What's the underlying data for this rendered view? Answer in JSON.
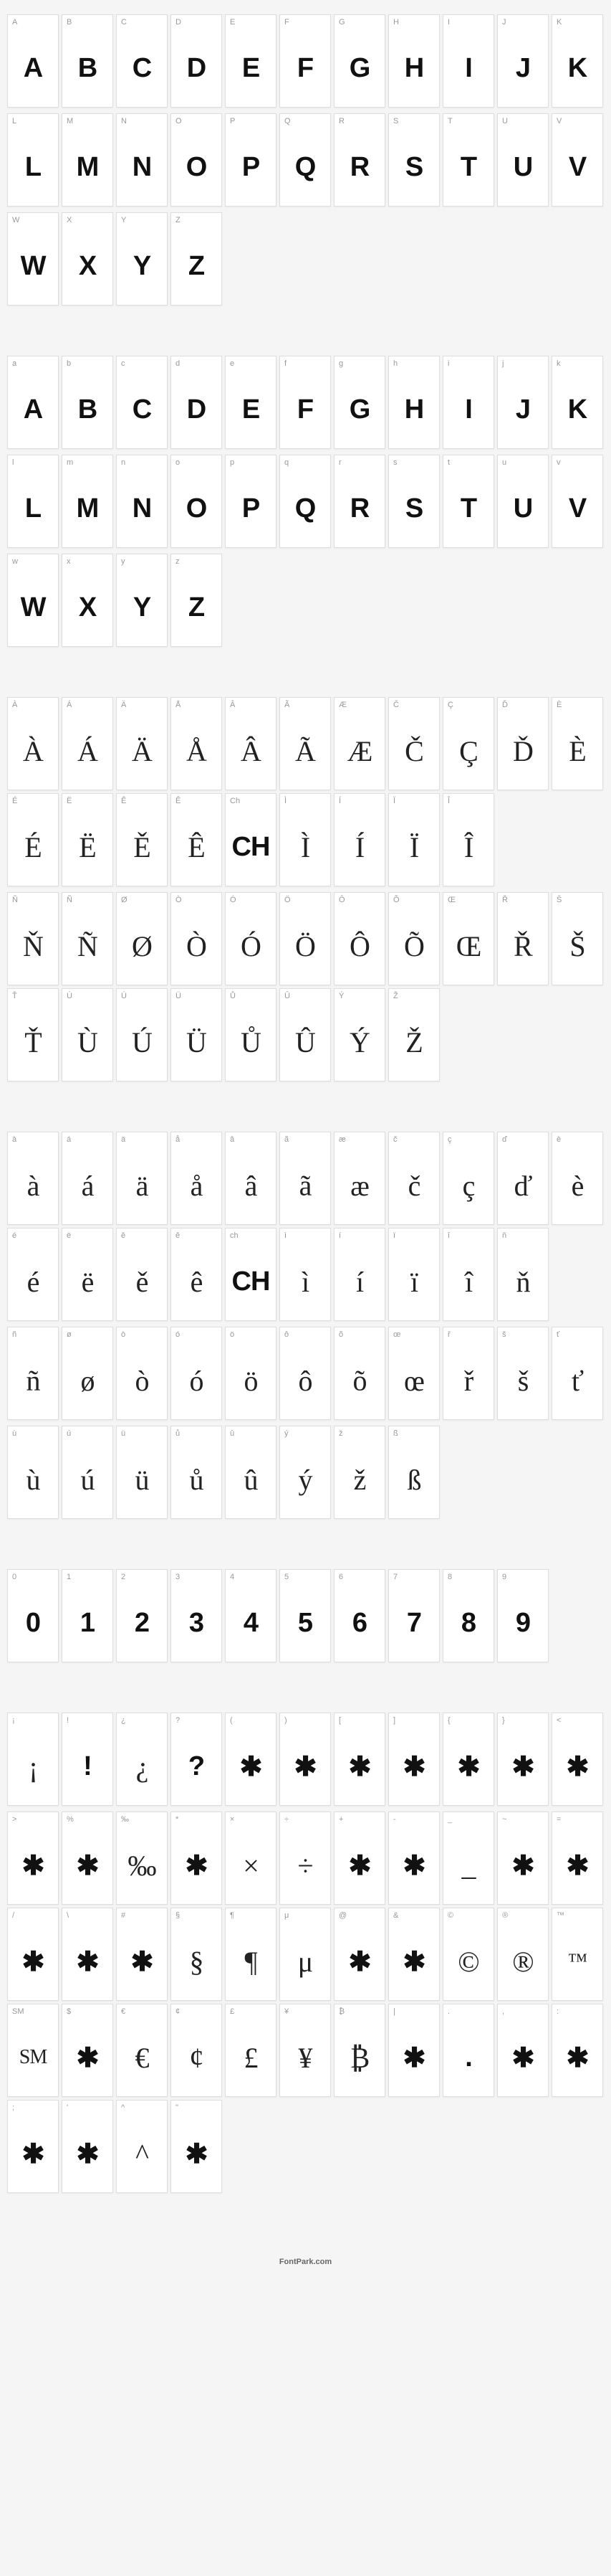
{
  "footer": "FontPark.com",
  "sections": [
    {
      "id": "uppercase",
      "glyph_style": "bold",
      "cells_per_row": 11,
      "cells": [
        {
          "label": "A",
          "glyph": "A"
        },
        {
          "label": "B",
          "glyph": "B"
        },
        {
          "label": "C",
          "glyph": "C"
        },
        {
          "label": "D",
          "glyph": "D"
        },
        {
          "label": "E",
          "glyph": "E"
        },
        {
          "label": "F",
          "glyph": "F"
        },
        {
          "label": "G",
          "glyph": "G"
        },
        {
          "label": "H",
          "glyph": "H"
        },
        {
          "label": "I",
          "glyph": "I"
        },
        {
          "label": "J",
          "glyph": "J"
        },
        {
          "label": "K",
          "glyph": "K"
        },
        {
          "label": "L",
          "glyph": "L"
        },
        {
          "label": "M",
          "glyph": "M"
        },
        {
          "label": "N",
          "glyph": "N"
        },
        {
          "label": "O",
          "glyph": "O"
        },
        {
          "label": "P",
          "glyph": "P"
        },
        {
          "label": "Q",
          "glyph": "Q"
        },
        {
          "label": "R",
          "glyph": "R"
        },
        {
          "label": "S",
          "glyph": "S"
        },
        {
          "label": "T",
          "glyph": "T"
        },
        {
          "label": "U",
          "glyph": "U"
        },
        {
          "label": "V",
          "glyph": "V"
        },
        {
          "label": "W",
          "glyph": "W"
        },
        {
          "label": "X",
          "glyph": "X"
        },
        {
          "label": "Y",
          "glyph": "Y"
        },
        {
          "label": "Z",
          "glyph": "Z"
        }
      ]
    },
    {
      "id": "lowercase",
      "glyph_style": "bold",
      "cells_per_row": 11,
      "cells": [
        {
          "label": "a",
          "glyph": "A"
        },
        {
          "label": "b",
          "glyph": "B"
        },
        {
          "label": "c",
          "glyph": "C"
        },
        {
          "label": "d",
          "glyph": "D"
        },
        {
          "label": "e",
          "glyph": "E"
        },
        {
          "label": "f",
          "glyph": "F"
        },
        {
          "label": "g",
          "glyph": "G"
        },
        {
          "label": "h",
          "glyph": "H"
        },
        {
          "label": "i",
          "glyph": "I"
        },
        {
          "label": "j",
          "glyph": "J"
        },
        {
          "label": "k",
          "glyph": "K"
        },
        {
          "label": "l",
          "glyph": "L"
        },
        {
          "label": "m",
          "glyph": "M"
        },
        {
          "label": "n",
          "glyph": "N"
        },
        {
          "label": "o",
          "glyph": "O"
        },
        {
          "label": "p",
          "glyph": "P"
        },
        {
          "label": "q",
          "glyph": "Q"
        },
        {
          "label": "r",
          "glyph": "R"
        },
        {
          "label": "s",
          "glyph": "S"
        },
        {
          "label": "t",
          "glyph": "T"
        },
        {
          "label": "u",
          "glyph": "U"
        },
        {
          "label": "v",
          "glyph": "V"
        },
        {
          "label": "w",
          "glyph": "W"
        },
        {
          "label": "x",
          "glyph": "X"
        },
        {
          "label": "y",
          "glyph": "Y"
        },
        {
          "label": "z",
          "glyph": "Z"
        }
      ]
    },
    {
      "id": "accented-upper",
      "glyph_style": "serif",
      "cells_per_row": 11,
      "cells": [
        {
          "label": "À",
          "glyph": "À"
        },
        {
          "label": "Á",
          "glyph": "Á"
        },
        {
          "label": "Ä",
          "glyph": "Ä"
        },
        {
          "label": "Å",
          "glyph": "Å"
        },
        {
          "label": "Â",
          "glyph": "Â"
        },
        {
          "label": "Ã",
          "glyph": "Ã"
        },
        {
          "label": "Æ",
          "glyph": "Æ"
        },
        {
          "label": "Č",
          "glyph": "Č"
        },
        {
          "label": "Ç",
          "glyph": "Ç"
        },
        {
          "label": "",
          "glyph": "",
          "empty": true
        },
        {
          "label": "",
          "glyph": "",
          "empty": true
        },
        {
          "label": "Ď",
          "glyph": "Ď"
        },
        {
          "label": "È",
          "glyph": "È"
        },
        {
          "label": "É",
          "glyph": "É"
        },
        {
          "label": "Ë",
          "glyph": "Ë"
        },
        {
          "label": "Ě",
          "glyph": "Ě"
        },
        {
          "label": "Ê",
          "glyph": "Ê"
        },
        {
          "label": "Ch",
          "glyph": "CH",
          "bold": true
        },
        {
          "label": "Ì",
          "glyph": "Ì"
        },
        {
          "label": "Í",
          "glyph": "Í"
        },
        {
          "label": "Ï",
          "glyph": "Ï"
        },
        {
          "label": "Î",
          "glyph": "Î"
        },
        {
          "label": "Ň",
          "glyph": "Ň"
        },
        {
          "label": "Ñ",
          "glyph": "Ñ"
        },
        {
          "label": "Ø",
          "glyph": "Ø"
        },
        {
          "label": "Ò",
          "glyph": "Ò"
        },
        {
          "label": "Ó",
          "glyph": "Ó"
        },
        {
          "label": "Ö",
          "glyph": "Ö"
        },
        {
          "label": "Ô",
          "glyph": "Ô"
        },
        {
          "label": "Õ",
          "glyph": "Õ"
        },
        {
          "label": "Œ",
          "glyph": "Œ"
        },
        {
          "label": "",
          "glyph": "",
          "empty": true
        },
        {
          "label": "",
          "glyph": "",
          "empty": true
        },
        {
          "label": "Ř",
          "glyph": "Ř"
        },
        {
          "label": "Š",
          "glyph": "Š"
        },
        {
          "label": "Ť",
          "glyph": "Ť"
        },
        {
          "label": "Ù",
          "glyph": "Ù"
        },
        {
          "label": "Ú",
          "glyph": "Ú"
        },
        {
          "label": "Ü",
          "glyph": "Ü"
        },
        {
          "label": "Ů",
          "glyph": "Ů"
        },
        {
          "label": "Û",
          "glyph": "Û"
        },
        {
          "label": "Ý",
          "glyph": "Ý"
        },
        {
          "label": "Ž",
          "glyph": "Ž"
        }
      ]
    },
    {
      "id": "accented-lower",
      "glyph_style": "serif",
      "cells_per_row": 11,
      "cells": [
        {
          "label": "à",
          "glyph": "à"
        },
        {
          "label": "á",
          "glyph": "á"
        },
        {
          "label": "ä",
          "glyph": "ä"
        },
        {
          "label": "å",
          "glyph": "å"
        },
        {
          "label": "â",
          "glyph": "â"
        },
        {
          "label": "ã",
          "glyph": "ã"
        },
        {
          "label": "æ",
          "glyph": "æ"
        },
        {
          "label": "č",
          "glyph": "č"
        },
        {
          "label": "ç",
          "glyph": "ç"
        },
        {
          "label": "ď",
          "glyph": "ď"
        },
        {
          "label": "",
          "glyph": "",
          "empty": true
        },
        {
          "label": "è",
          "glyph": "è"
        },
        {
          "label": "é",
          "glyph": "é"
        },
        {
          "label": "ë",
          "glyph": "ë"
        },
        {
          "label": "ě",
          "glyph": "ě"
        },
        {
          "label": "ê",
          "glyph": "ê"
        },
        {
          "label": "ch",
          "glyph": "CH",
          "bold": true
        },
        {
          "label": "ì",
          "glyph": "ì"
        },
        {
          "label": "í",
          "glyph": "í"
        },
        {
          "label": "ï",
          "glyph": "ï"
        },
        {
          "label": "î",
          "glyph": "î"
        },
        {
          "label": "ň",
          "glyph": "ň"
        },
        {
          "label": "ñ",
          "glyph": "ñ"
        },
        {
          "label": "ø",
          "glyph": "ø"
        },
        {
          "label": "ò",
          "glyph": "ò"
        },
        {
          "label": "ó",
          "glyph": "ó"
        },
        {
          "label": "ö",
          "glyph": "ö"
        },
        {
          "label": "ô",
          "glyph": "ô"
        },
        {
          "label": "õ",
          "glyph": "õ"
        },
        {
          "label": "œ",
          "glyph": "œ"
        },
        {
          "label": "ř",
          "glyph": "ř"
        },
        {
          "label": "š",
          "glyph": "š"
        },
        {
          "label": "ť",
          "glyph": "ť"
        },
        {
          "label": "ù",
          "glyph": "ù"
        },
        {
          "label": "ú",
          "glyph": "ú"
        },
        {
          "label": "ü",
          "glyph": "ü"
        },
        {
          "label": "ů",
          "glyph": "ů"
        },
        {
          "label": "û",
          "glyph": "û"
        },
        {
          "label": "ý",
          "glyph": "ý"
        },
        {
          "label": "ž",
          "glyph": "ž"
        },
        {
          "label": "ß",
          "glyph": "ß"
        }
      ]
    },
    {
      "id": "digits",
      "glyph_style": "bold",
      "cells_per_row": 11,
      "cells": [
        {
          "label": "0",
          "glyph": "0"
        },
        {
          "label": "1",
          "glyph": "1"
        },
        {
          "label": "2",
          "glyph": "2"
        },
        {
          "label": "3",
          "glyph": "3"
        },
        {
          "label": "4",
          "glyph": "4"
        },
        {
          "label": "5",
          "glyph": "5"
        },
        {
          "label": "6",
          "glyph": "6"
        },
        {
          "label": "7",
          "glyph": "7"
        },
        {
          "label": "8",
          "glyph": "8"
        },
        {
          "label": "9",
          "glyph": "9"
        }
      ]
    },
    {
      "id": "symbols",
      "glyph_style": "serif",
      "cells_per_row": 11,
      "cells": [
        {
          "label": "¡",
          "glyph": "¡"
        },
        {
          "label": "!",
          "glyph": "!",
          "bold": true
        },
        {
          "label": "¿",
          "glyph": "¿"
        },
        {
          "label": "?",
          "glyph": "?",
          "bold": true
        },
        {
          "label": "(",
          "glyph": "✱",
          "bold": true
        },
        {
          "label": ")",
          "glyph": "✱",
          "bold": true
        },
        {
          "label": "[",
          "glyph": "✱",
          "bold": true
        },
        {
          "label": "]",
          "glyph": "✱",
          "bold": true
        },
        {
          "label": "{",
          "glyph": "✱",
          "bold": true
        },
        {
          "label": "}",
          "glyph": "✱",
          "bold": true
        },
        {
          "label": "<",
          "glyph": "✱",
          "bold": true
        },
        {
          "label": ">",
          "glyph": "✱",
          "bold": true
        },
        {
          "label": "%",
          "glyph": "✱",
          "bold": true
        },
        {
          "label": "‰",
          "glyph": "‰"
        },
        {
          "label": "*",
          "glyph": "✱",
          "bold": true
        },
        {
          "label": "×",
          "glyph": "×"
        },
        {
          "label": "÷",
          "glyph": "÷"
        },
        {
          "label": "+",
          "glyph": "✱",
          "bold": true
        },
        {
          "label": "-",
          "glyph": "✱",
          "bold": true
        },
        {
          "label": "_",
          "glyph": "_"
        },
        {
          "label": "~",
          "glyph": "✱",
          "bold": true
        },
        {
          "label": "",
          "glyph": "",
          "empty": true
        },
        {
          "label": "=",
          "glyph": "✱",
          "bold": true
        },
        {
          "label": "/",
          "glyph": "✱",
          "bold": true
        },
        {
          "label": "\\",
          "glyph": "✱",
          "bold": true
        },
        {
          "label": "#",
          "glyph": "✱",
          "bold": true
        },
        {
          "label": "§",
          "glyph": "§"
        },
        {
          "label": "¶",
          "glyph": "¶"
        },
        {
          "label": "μ",
          "glyph": "μ"
        },
        {
          "label": "@",
          "glyph": "✱",
          "bold": true
        },
        {
          "label": "&",
          "glyph": "✱",
          "bold": true
        },
        {
          "label": "©",
          "glyph": "©"
        },
        {
          "label": "",
          "glyph": "",
          "empty": true
        },
        {
          "label": "®",
          "glyph": "®"
        },
        {
          "label": "™",
          "glyph": "™",
          "small": true
        },
        {
          "label": "SM",
          "glyph": "SM",
          "small": true
        },
        {
          "label": "$",
          "glyph": "✱",
          "bold": true
        },
        {
          "label": "€",
          "glyph": "€"
        },
        {
          "label": "¢",
          "glyph": "¢"
        },
        {
          "label": "£",
          "glyph": "£"
        },
        {
          "label": "¥",
          "glyph": "¥"
        },
        {
          "label": "₿",
          "glyph": "₿"
        },
        {
          "label": "|",
          "glyph": "✱",
          "bold": true
        },
        {
          "label": "",
          "glyph": "",
          "empty": true
        },
        {
          "label": ".",
          "glyph": ".",
          "bold": true
        },
        {
          "label": ",",
          "glyph": "✱",
          "bold": true
        },
        {
          "label": ":",
          "glyph": "✱",
          "bold": true
        },
        {
          "label": ";",
          "glyph": "✱",
          "bold": true
        },
        {
          "label": "'",
          "glyph": "✱",
          "bold": true
        },
        {
          "label": "^",
          "glyph": "^"
        },
        {
          "label": "\"",
          "glyph": "✱",
          "bold": true
        }
      ]
    }
  ]
}
